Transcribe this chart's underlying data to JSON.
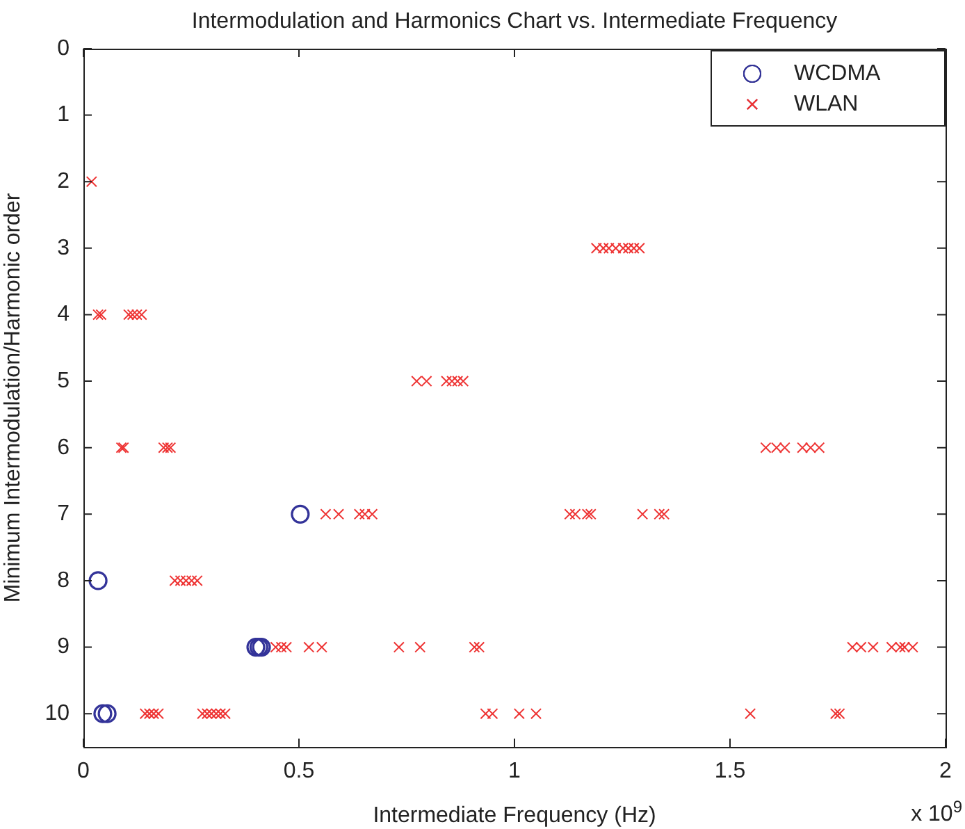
{
  "chart_data": {
    "type": "scatter",
    "title": "Intermodulation and Harmonics Chart vs. Intermediate Frequency",
    "xlabel": "Intermediate Frequency (Hz)",
    "ylabel": "Minimum Intermodulation/Harmonic order",
    "annotations": [
      "x 10$^{9}$"
    ],
    "xlim": [
      0,
      2
    ],
    "xticks": [
      0,
      0.5,
      1,
      1.5,
      2
    ],
    "ylim": [
      10.5,
      0
    ],
    "yticks": [
      0,
      1,
      2,
      3,
      4,
      5,
      6,
      7,
      8,
      9,
      10
    ],
    "grid": false,
    "legend": "top right",
    "series": [
      {
        "name": "WCDMA",
        "color": "#333399",
        "marker": "circle",
        "x": [
          0.503,
          0.034,
          0.4,
          0.407,
          0.413,
          0.045,
          0.055
        ],
        "values": [
          7,
          8,
          9,
          9,
          9,
          10,
          10
        ]
      },
      {
        "name": "WLAN",
        "color": "#ee3333",
        "marker": "cross",
        "x": [
          0.019,
          1.19,
          1.206,
          1.219,
          1.235,
          1.252,
          1.264,
          1.277,
          1.29,
          0.034,
          0.041,
          0.105,
          0.114,
          0.124,
          0.135,
          0.773,
          0.796,
          0.842,
          0.855,
          0.868,
          0.881,
          0.088,
          0.093,
          0.186,
          0.195,
          0.202,
          1.583,
          1.608,
          1.627,
          1.668,
          1.687,
          1.707,
          0.562,
          0.592,
          0.64,
          0.653,
          0.67,
          1.128,
          1.141,
          1.169,
          1.177,
          1.297,
          1.336,
          1.347,
          0.212,
          0.225,
          0.238,
          0.251,
          0.264,
          0.446,
          0.459,
          0.471,
          0.523,
          0.553,
          0.732,
          0.781,
          0.907,
          0.918,
          1.784,
          1.804,
          1.832,
          1.875,
          1.895,
          1.905,
          1.924,
          0.143,
          0.153,
          0.163,
          0.174,
          0.276,
          0.287,
          0.297,
          0.308,
          0.318,
          0.329,
          0.933,
          0.949,
          1.011,
          1.05,
          1.547,
          1.745,
          1.754
        ],
        "values": [
          2,
          3,
          3,
          3,
          3,
          3,
          3,
          3,
          3,
          4,
          4,
          4,
          4,
          4,
          4,
          5,
          5,
          5,
          5,
          5,
          5,
          6,
          6,
          6,
          6,
          6,
          6,
          6,
          6,
          6,
          6,
          6,
          7,
          7,
          7,
          7,
          7,
          7,
          7,
          7,
          7,
          7,
          7,
          7,
          8,
          8,
          8,
          8,
          8,
          9,
          9,
          9,
          9,
          9,
          9,
          9,
          9,
          9,
          9,
          9,
          9,
          9,
          9,
          9,
          9,
          10,
          10,
          10,
          10,
          10,
          10,
          10,
          10,
          10,
          10,
          10,
          10,
          10,
          10,
          10,
          10,
          10
        ]
      }
    ]
  }
}
